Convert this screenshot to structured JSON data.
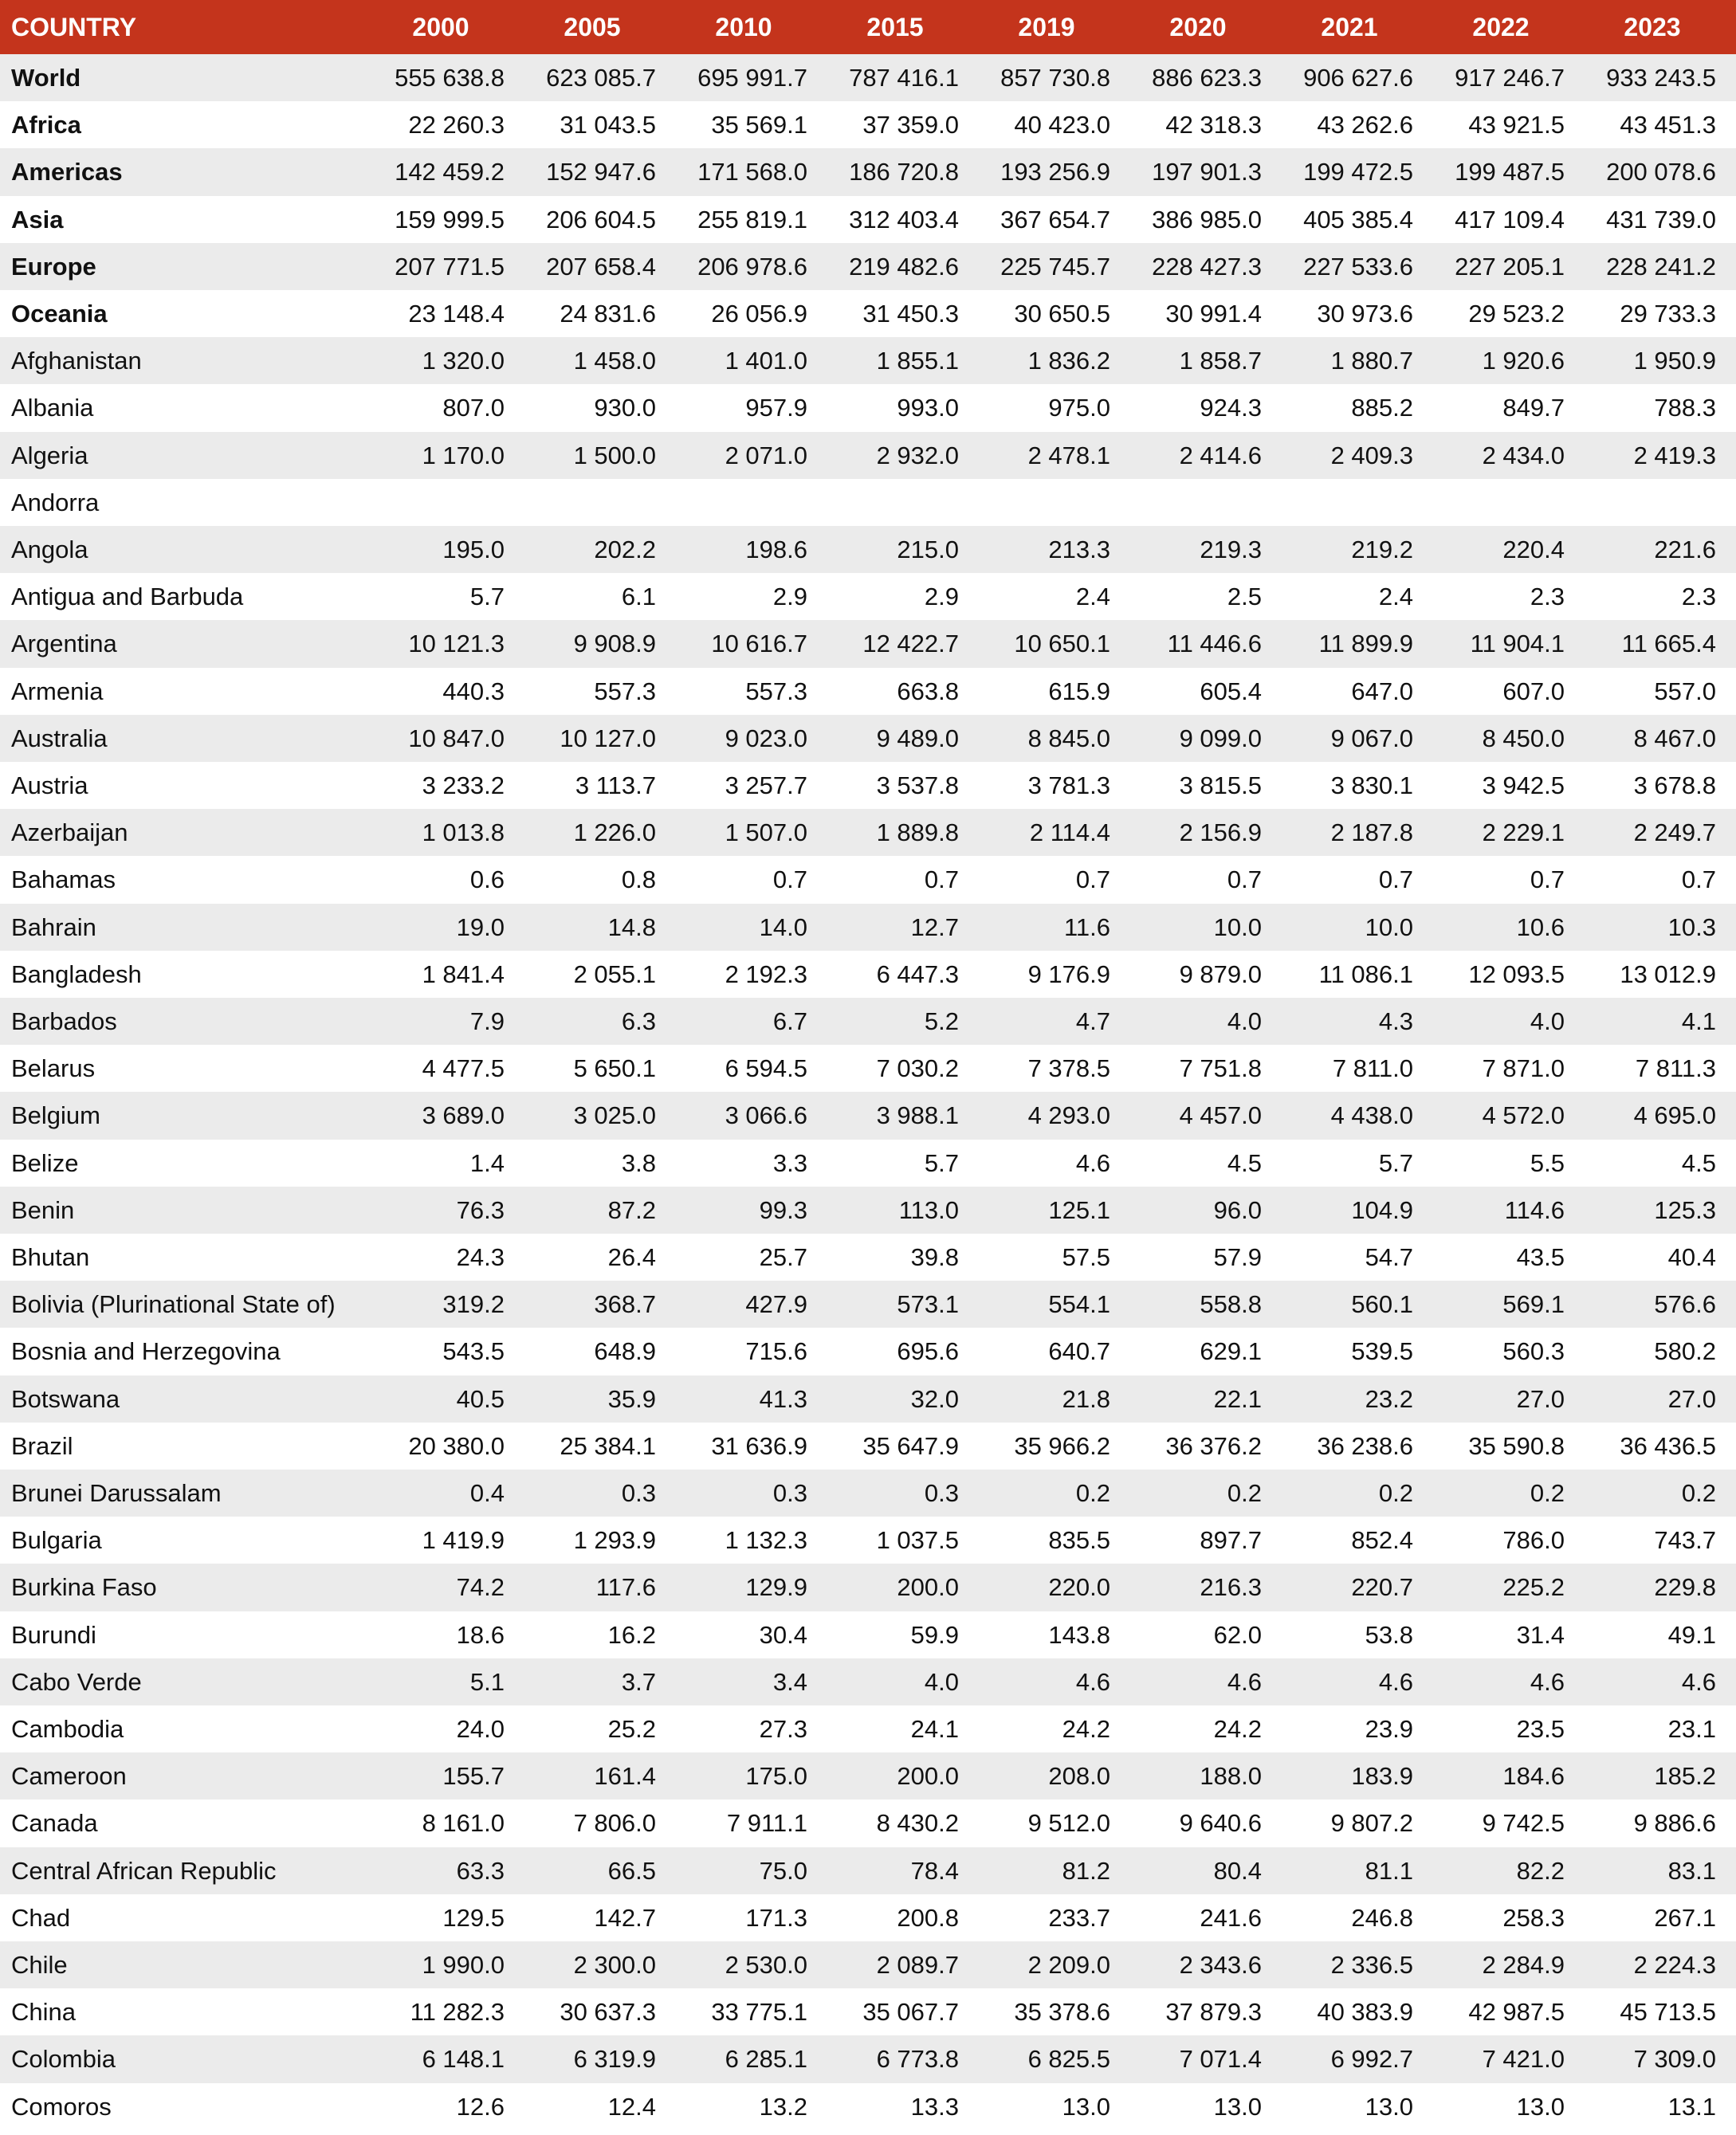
{
  "table": {
    "header": [
      "COUNTRY",
      "2000",
      "2005",
      "2010",
      "2015",
      "2019",
      "2020",
      "2021",
      "2022",
      "2023"
    ],
    "rows": [
      {
        "country": "World",
        "values": [
          "555 638.8",
          "623 085.7",
          "695 991.7",
          "787 416.1",
          "857 730.8",
          "886 623.3",
          "906 627.6",
          "917 246.7",
          "933 243.5"
        ]
      },
      {
        "country": "Africa",
        "values": [
          "22 260.3",
          "31 043.5",
          "35 569.1",
          "37 359.0",
          "40 423.0",
          "42 318.3",
          "43 262.6",
          "43 921.5",
          "43 451.3"
        ]
      },
      {
        "country": "Americas",
        "values": [
          "142 459.2",
          "152 947.6",
          "171 568.0",
          "186 720.8",
          "193 256.9",
          "197 901.3",
          "199 472.5",
          "199 487.5",
          "200 078.6"
        ]
      },
      {
        "country": "Asia",
        "values": [
          "159 999.5",
          "206 604.5",
          "255 819.1",
          "312 403.4",
          "367 654.7",
          "386 985.0",
          "405 385.4",
          "417 109.4",
          "431 739.0"
        ]
      },
      {
        "country": "Europe",
        "values": [
          "207 771.5",
          "207 658.4",
          "206 978.6",
          "219 482.6",
          "225 745.7",
          "228 427.3",
          "227 533.6",
          "227 205.1",
          "228 241.2"
        ]
      },
      {
        "country": "Oceania",
        "values": [
          "23 148.4",
          "24 831.6",
          "26 056.9",
          "31 450.3",
          "30 650.5",
          "30 991.4",
          "30 973.6",
          "29 523.2",
          "29 733.3"
        ]
      },
      {
        "country": "Afghanistan",
        "values": [
          "1 320.0",
          "1 458.0",
          "1 401.0",
          "1 855.1",
          "1 836.2",
          "1 858.7",
          "1 880.7",
          "1 920.6",
          "1 950.9"
        ]
      },
      {
        "country": "Albania",
        "values": [
          "807.0",
          "930.0",
          "957.9",
          "993.0",
          "975.0",
          "924.3",
          "885.2",
          "849.7",
          "788.3"
        ]
      },
      {
        "country": "Algeria",
        "values": [
          "1 170.0",
          "1 500.0",
          "2 071.0",
          "2 932.0",
          "2 478.1",
          "2 414.6",
          "2 409.3",
          "2 434.0",
          "2 419.3"
        ]
      },
      {
        "country": "Andorra",
        "values": [
          null,
          null,
          null,
          null,
          null,
          null,
          null,
          null,
          null
        ]
      },
      {
        "country": "Angola",
        "values": [
          "195.0",
          "202.2",
          "198.6",
          "215.0",
          "213.3",
          "219.3",
          "219.2",
          "220.4",
          "221.6"
        ]
      },
      {
        "country": "Antigua and Barbuda",
        "values": [
          "5.7",
          "6.1",
          "2.9",
          "2.9",
          "2.4",
          "2.5",
          "2.4",
          "2.3",
          "2.3"
        ]
      },
      {
        "country": "Argentina",
        "values": [
          "10 121.3",
          "9 908.9",
          "10 616.7",
          "12 422.7",
          "10 650.1",
          "11 446.6",
          "11 899.9",
          "11 904.1",
          "11 665.4"
        ]
      },
      {
        "country": "Armenia",
        "values": [
          "440.3",
          "557.3",
          "557.3",
          "663.8",
          "615.9",
          "605.4",
          "647.0",
          "607.0",
          "557.0"
        ]
      },
      {
        "country": "Australia",
        "values": [
          "10 847.0",
          "10 127.0",
          "9 023.0",
          "9 489.0",
          "8 845.0",
          "9 099.0",
          "9 067.0",
          "8 450.0",
          "8 467.0"
        ]
      },
      {
        "country": "Austria",
        "values": [
          "3 233.2",
          "3 113.7",
          "3 257.7",
          "3 537.8",
          "3 781.3",
          "3 815.5",
          "3 830.1",
          "3 942.5",
          "3 678.8"
        ]
      },
      {
        "country": "Azerbaijan",
        "values": [
          "1 013.8",
          "1 226.0",
          "1 507.0",
          "1 889.8",
          "2 114.4",
          "2 156.9",
          "2 187.8",
          "2 229.1",
          "2 249.7"
        ]
      },
      {
        "country": "Bahamas",
        "values": [
          "0.6",
          "0.8",
          "0.7",
          "0.7",
          "0.7",
          "0.7",
          "0.7",
          "0.7",
          "0.7"
        ]
      },
      {
        "country": "Bahrain",
        "values": [
          "19.0",
          "14.8",
          "14.0",
          "12.7",
          "11.6",
          "10.0",
          "10.0",
          "10.6",
          "10.3"
        ]
      },
      {
        "country": "Bangladesh",
        "values": [
          "1 841.4",
          "2 055.1",
          "2 192.3",
          "6 447.3",
          "9 176.9",
          "9 879.0",
          "11 086.1",
          "12 093.5",
          "13 012.9"
        ]
      },
      {
        "country": "Barbados",
        "values": [
          "7.9",
          "6.3",
          "6.7",
          "5.2",
          "4.7",
          "4.0",
          "4.3",
          "4.0",
          "4.1"
        ]
      },
      {
        "country": "Belarus",
        "values": [
          "4 477.5",
          "5 650.1",
          "6 594.5",
          "7 030.2",
          "7 378.5",
          "7 751.8",
          "7 811.0",
          "7 871.0",
          "7 811.3"
        ]
      },
      {
        "country": "Belgium",
        "values": [
          "3 689.0",
          "3 025.0",
          "3 066.6",
          "3 988.1",
          "4 293.0",
          "4 457.0",
          "4 438.0",
          "4 572.0",
          "4 695.0"
        ]
      },
      {
        "country": "Belize",
        "values": [
          "1.4",
          "3.8",
          "3.3",
          "5.7",
          "4.6",
          "4.5",
          "5.7",
          "5.5",
          "4.5"
        ]
      },
      {
        "country": "Benin",
        "values": [
          "76.3",
          "87.2",
          "99.3",
          "113.0",
          "125.1",
          "96.0",
          "104.9",
          "114.6",
          "125.3"
        ]
      },
      {
        "country": "Bhutan",
        "values": [
          "24.3",
          "26.4",
          "25.7",
          "39.8",
          "57.5",
          "57.9",
          "54.7",
          "43.5",
          "40.4"
        ]
      },
      {
        "country": "Bolivia (Plurinational State of)",
        "values": [
          "319.2",
          "368.7",
          "427.9",
          "573.1",
          "554.1",
          "558.8",
          "560.1",
          "569.1",
          "576.6"
        ]
      },
      {
        "country": "Bosnia and Herzegovina",
        "values": [
          "543.5",
          "648.9",
          "715.6",
          "695.6",
          "640.7",
          "629.1",
          "539.5",
          "560.3",
          "580.2"
        ]
      },
      {
        "country": "Botswana",
        "values": [
          "40.5",
          "35.9",
          "41.3",
          "32.0",
          "21.8",
          "22.1",
          "23.2",
          "27.0",
          "27.0"
        ]
      },
      {
        "country": "Brazil",
        "values": [
          "20 380.0",
          "25 384.1",
          "31 636.9",
          "35 647.9",
          "35 966.2",
          "36 376.2",
          "36 238.6",
          "35 590.8",
          "36 436.5"
        ]
      },
      {
        "country": "Brunei Darussalam",
        "values": [
          "0.4",
          "0.3",
          "0.3",
          "0.3",
          "0.2",
          "0.2",
          "0.2",
          "0.2",
          "0.2"
        ]
      },
      {
        "country": "Bulgaria",
        "values": [
          "1 419.9",
          "1 293.9",
          "1 132.3",
          "1 037.5",
          "835.5",
          "897.7",
          "852.4",
          "786.0",
          "743.7"
        ]
      },
      {
        "country": "Burkina Faso",
        "values": [
          "74.2",
          "117.6",
          "129.9",
          "200.0",
          "220.0",
          "216.3",
          "220.7",
          "225.2",
          "229.8"
        ]
      },
      {
        "country": "Burundi",
        "values": [
          "18.6",
          "16.2",
          "30.4",
          "59.9",
          "143.8",
          "62.0",
          "53.8",
          "31.4",
          "49.1"
        ]
      },
      {
        "country": "Cabo Verde",
        "values": [
          "5.1",
          "3.7",
          "3.4",
          "4.0",
          "4.6",
          "4.6",
          "4.6",
          "4.6",
          "4.6"
        ]
      },
      {
        "country": "Cambodia",
        "values": [
          "24.0",
          "25.2",
          "27.3",
          "24.1",
          "24.2",
          "24.2",
          "23.9",
          "23.5",
          "23.1"
        ]
      },
      {
        "country": "Cameroon",
        "values": [
          "155.7",
          "161.4",
          "175.0",
          "200.0",
          "208.0",
          "188.0",
          "183.9",
          "184.6",
          "185.2"
        ]
      },
      {
        "country": "Canada",
        "values": [
          "8 161.0",
          "7 806.0",
          "7 911.1",
          "8 430.2",
          "9 512.0",
          "9 640.6",
          "9 807.2",
          "9 742.5",
          "9 886.6"
        ]
      },
      {
        "country": "Central African Republic",
        "values": [
          "63.3",
          "66.5",
          "75.0",
          "78.4",
          "81.2",
          "80.4",
          "81.1",
          "82.2",
          "83.1"
        ]
      },
      {
        "country": "Chad",
        "values": [
          "129.5",
          "142.7",
          "171.3",
          "200.8",
          "233.7",
          "241.6",
          "246.8",
          "258.3",
          "267.1"
        ]
      },
      {
        "country": "Chile",
        "values": [
          "1 990.0",
          "2 300.0",
          "2 530.0",
          "2 089.7",
          "2 209.0",
          "2 343.6",
          "2 336.5",
          "2 284.9",
          "2 224.3"
        ]
      },
      {
        "country": "China",
        "values": [
          "11 282.3",
          "30 637.3",
          "33 775.1",
          "35 067.7",
          "35 378.6",
          "37 879.3",
          "40 383.9",
          "42 987.5",
          "45 713.5"
        ]
      },
      {
        "country": "Colombia",
        "values": [
          "6 148.1",
          "6 319.9",
          "6 285.1",
          "6 773.8",
          "6 825.5",
          "7 071.4",
          "6 992.7",
          "7 421.0",
          "7 309.0"
        ]
      },
      {
        "country": "Comoros",
        "values": [
          "12.6",
          "12.4",
          "13.2",
          "13.3",
          "13.0",
          "13.0",
          "13.0",
          "13.0",
          "13.1"
        ]
      }
    ]
  }
}
